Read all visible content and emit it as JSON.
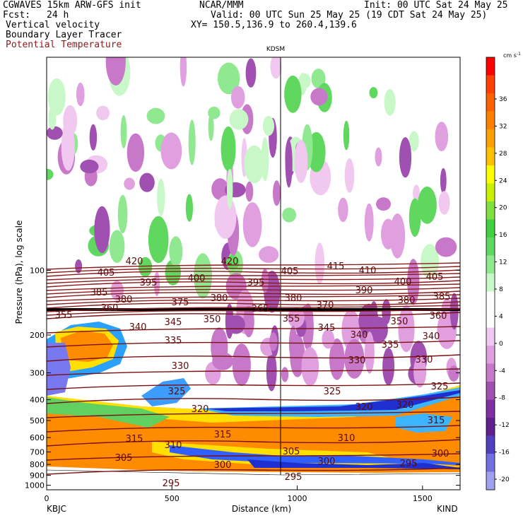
{
  "header": {
    "model_line": "CGWAVES 15km ARW-GFS init",
    "org": "NCAR/MMM",
    "init": "Init: 00 UTC Sat 24 May 25",
    "fcst_label": "Fcst:",
    "fcst_value": "24 h",
    "valid": "Valid: 00 UTC Sun 25 May 25 (19 CDT Sat 24 May 25)",
    "field1": "Vertical velocity",
    "field2": "Boundary Layer Tracer",
    "field3": "Potential Temperature",
    "xy": "XY= 150.5,136.9 to 260.4,139.6",
    "field3_color": "#8b1a1a"
  },
  "plot": {
    "station_marker": "KDSM",
    "left_station": "KBJC",
    "right_station": "KIND",
    "xlabel": "Distance (km)",
    "ylabel": "Pressure (hPa), log scale"
  },
  "chart_data": {
    "type": "heatmap",
    "x_range": [
      0,
      1650
    ],
    "x_ticks": [
      "0",
      "500",
      "1000",
      "1500"
    ],
    "y_ticks": [
      "100",
      "200",
      "300",
      "400",
      "500",
      "600",
      "700",
      "800",
      "900",
      "1000"
    ],
    "y_scale": "log",
    "colorbar": {
      "unit": "cm s",
      "unit_exp": "-1",
      "labels": [
        "36",
        "32",
        "28",
        "24",
        "20",
        "16",
        "12",
        "8",
        "4",
        "0",
        "-4",
        "-8",
        "-12",
        "-16",
        "-20"
      ],
      "colors": [
        "#ff0000",
        "#ff4000",
        "#ff6000",
        "#ff8000",
        "#ffa000",
        "#ffc000",
        "#ffff00",
        "#c8f000",
        "#80e040",
        "#40d040",
        "#60d860",
        "#90e890",
        "#c8f8c8",
        "#ffffff",
        "#ffffff",
        "#f0c8f0",
        "#e0a0e0",
        "#c878c8",
        "#a050b0",
        "#8030a0",
        "#602090",
        "#5040c0",
        "#7070e0",
        "#a0a0f0"
      ]
    },
    "theta_labels": [
      "420",
      "420",
      "415",
      "410",
      "405",
      "405",
      "405",
      "400",
      "400",
      "395",
      "395",
      "390",
      "385",
      "385",
      "380",
      "380",
      "380",
      "380",
      "375",
      "370",
      "365",
      "360",
      "360",
      "355",
      "355",
      "350",
      "350",
      "345",
      "345",
      "340",
      "340",
      "340",
      "335",
      "335",
      "330",
      "330",
      "330",
      "325",
      "325",
      "325",
      "320",
      "320",
      "320",
      "315",
      "315",
      "315",
      "310",
      "310",
      "305",
      "305",
      "300",
      "300",
      "300",
      "295",
      "295",
      "295"
    ]
  }
}
